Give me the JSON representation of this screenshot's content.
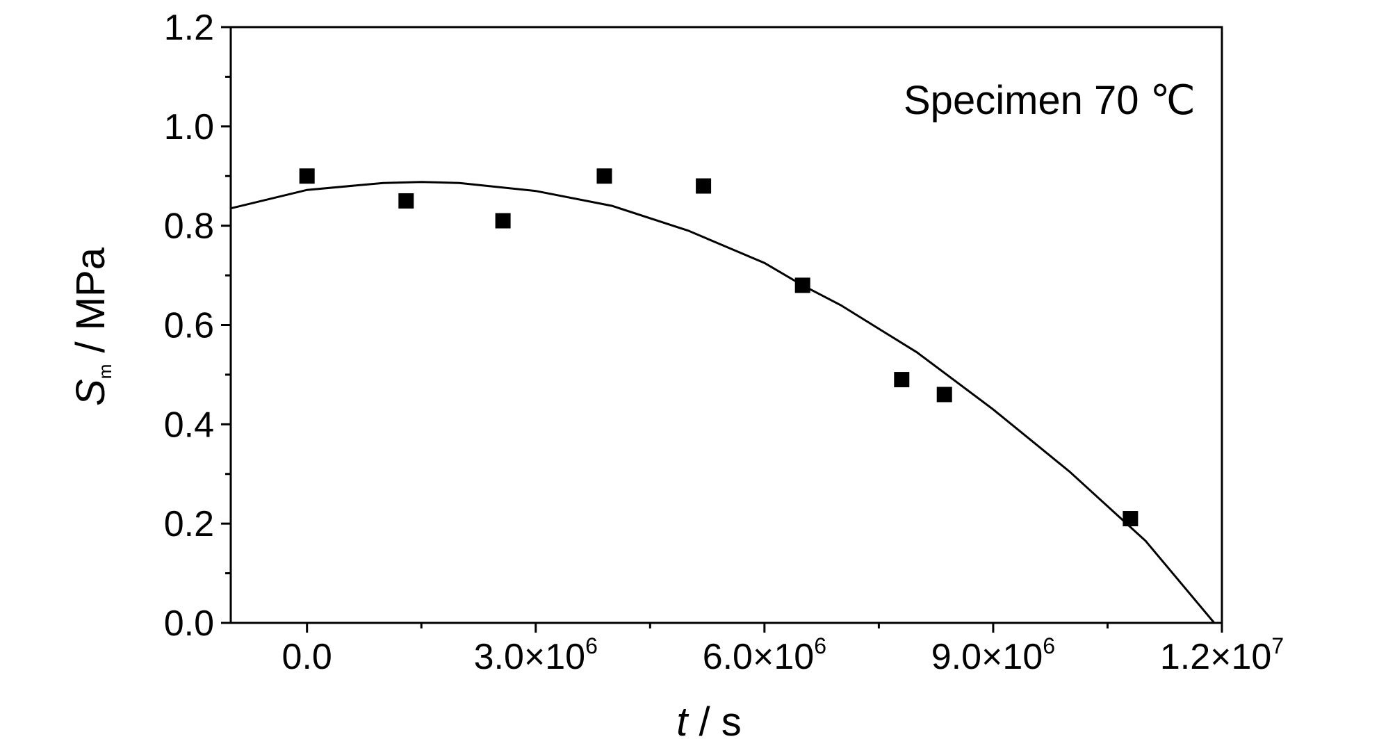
{
  "chart_data": {
    "type": "scatter",
    "xlabel_var": "t",
    "xlabel_unit": " / s",
    "ylabel_var": "S",
    "ylabel_sub": "m",
    "ylabel_unit": " / MPa",
    "annotation": "Specimen 70 ℃",
    "xlim": [
      -1000000,
      12000000
    ],
    "ylim": [
      0,
      1.2
    ],
    "x_ticks": [
      {
        "value": 0,
        "mant": "0.0",
        "exp": ""
      },
      {
        "value": 3000000,
        "mant": "3.0×10",
        "exp": "6"
      },
      {
        "value": 6000000,
        "mant": "6.0×10",
        "exp": "6"
      },
      {
        "value": 9000000,
        "mant": "9.0×10",
        "exp": "6"
      },
      {
        "value": 12000000,
        "mant": "1.2×10",
        "exp": "7"
      }
    ],
    "y_ticks": [
      {
        "value": 0,
        "label": "0.0"
      },
      {
        "value": 0.2,
        "label": "0.2"
      },
      {
        "value": 0.4,
        "label": "0.4"
      },
      {
        "value": 0.6,
        "label": "0.6"
      },
      {
        "value": 0.8,
        "label": "0.8"
      },
      {
        "value": 1.0,
        "label": "1.0"
      },
      {
        "value": 1.2,
        "label": "1.2"
      }
    ],
    "grid": false,
    "series": [
      {
        "kind": "points",
        "marker": "square",
        "color": "#000000",
        "x": [
          0,
          1300000,
          2570000,
          3900000,
          5200000,
          6500000,
          7800000,
          8360000,
          10800000
        ],
        "y": [
          0.9,
          0.85,
          0.81,
          0.9,
          0.88,
          0.68,
          0.49,
          0.46,
          0.21
        ]
      },
      {
        "kind": "fit-line",
        "color": "#000000",
        "x": [
          -1000000,
          0,
          1000000,
          1500000,
          2000000,
          3000000,
          4000000,
          5000000,
          6000000,
          6500000,
          7000000,
          8000000,
          9000000,
          10000000,
          11000000,
          11900000
        ],
        "y": [
          0.835,
          0.872,
          0.886,
          0.888,
          0.886,
          0.87,
          0.84,
          0.79,
          0.725,
          0.68,
          0.64,
          0.545,
          0.43,
          0.305,
          0.165,
          0.0
        ]
      }
    ]
  }
}
